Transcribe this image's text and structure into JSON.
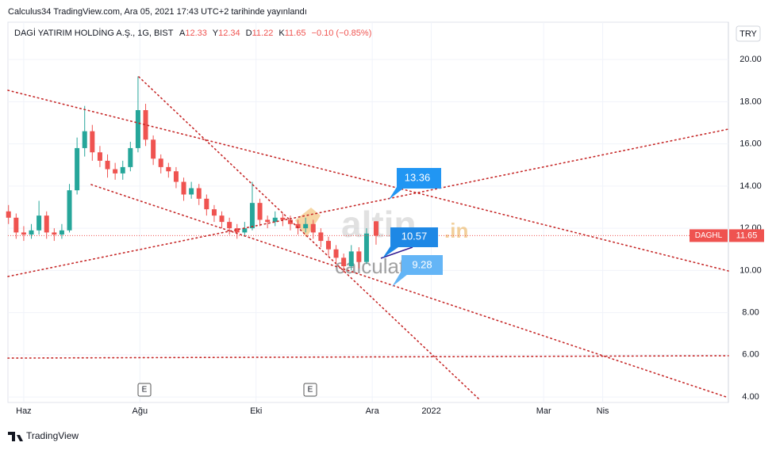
{
  "header": {
    "published": "Calculus34 TradingView.com, Ara 05, 2021 17:43 UTC+2 tarihinde yayınlandı",
    "footer": "TradingView",
    "currency_button": "TRY"
  },
  "chart_data": {
    "type": "candlestick",
    "title": "DAGİ YATIRIM HOLDİNG A.Ş., 1G, BIST",
    "ohlc_letters": [
      "A",
      "Y",
      "D",
      "K"
    ],
    "change_label": "−0.10 (−0.85%)",
    "symbol": "DAGHL",
    "up_color": "#26a69a",
    "down_color": "#ef5350",
    "x": [
      -8,
      -4,
      0,
      4,
      8,
      12,
      16,
      20,
      24,
      28,
      32,
      36,
      40,
      44,
      48,
      52,
      56,
      60,
      64,
      68,
      72,
      76,
      80,
      84,
      88,
      92,
      96,
      100,
      104,
      108,
      112,
      116,
      120,
      124,
      128,
      132,
      136,
      140,
      144,
      148,
      152,
      156,
      160,
      164,
      168,
      172,
      176,
      180,
      185
    ],
    "open": [
      12.8,
      12.5,
      11.8,
      11.7,
      11.9,
      12.6,
      11.8,
      11.7,
      11.9,
      13.8,
      15.8,
      16.6,
      15.6,
      15.2,
      14.8,
      14.6,
      14.9,
      15.8,
      17.6,
      16.2,
      15.3,
      14.9,
      14.7,
      14.2,
      13.6,
      13.9,
      13.4,
      12.9,
      12.6,
      12.3,
      12.0,
      11.8,
      12.0,
      13.2,
      12.4,
      12.3,
      12.5,
      12.4,
      12.2,
      12.0,
      12.2,
      11.8,
      11.4,
      11.0,
      10.6,
      10.2,
      10.9,
      10.4,
      12.33
    ],
    "high": [
      13.1,
      12.7,
      12.1,
      12.2,
      13.3,
      12.8,
      12.0,
      12.2,
      14.1,
      16.3,
      17.8,
      16.9,
      15.9,
      15.5,
      15.1,
      15.2,
      16.1,
      19.2,
      17.9,
      16.4,
      15.5,
      15.1,
      14.9,
      14.4,
      14.2,
      14.1,
      13.6,
      13.1,
      12.8,
      12.5,
      12.2,
      12.3,
      14.2,
      13.4,
      12.6,
      12.8,
      12.7,
      12.6,
      12.4,
      12.5,
      12.4,
      12.0,
      11.6,
      11.2,
      10.8,
      11.2,
      11.1,
      12.0,
      12.34
    ],
    "low": [
      12.2,
      11.5,
      11.4,
      11.5,
      11.7,
      11.5,
      11.4,
      11.5,
      11.8,
      13.6,
      15.4,
      15.2,
      14.9,
      14.4,
      14.3,
      14.3,
      14.7,
      15.6,
      15.9,
      15.0,
      14.6,
      14.4,
      13.9,
      13.3,
      13.4,
      13.1,
      12.6,
      12.3,
      12.0,
      11.7,
      11.5,
      11.6,
      11.9,
      12.1,
      12.0,
      12.1,
      12.1,
      11.9,
      11.7,
      11.8,
      11.5,
      11.1,
      10.7,
      10.3,
      9.9,
      10.0,
      10.1,
      10.3,
      11.22
    ],
    "close": [
      12.5,
      11.8,
      11.7,
      11.9,
      12.6,
      11.8,
      11.7,
      11.9,
      13.8,
      15.8,
      16.6,
      15.6,
      15.2,
      14.8,
      14.6,
      14.9,
      15.8,
      17.6,
      16.2,
      15.3,
      14.9,
      14.7,
      14.2,
      13.6,
      13.9,
      13.4,
      12.9,
      12.6,
      12.3,
      12.0,
      11.8,
      12.0,
      13.2,
      12.4,
      12.3,
      12.5,
      12.4,
      12.2,
      12.0,
      12.2,
      11.8,
      11.4,
      11.0,
      10.6,
      10.2,
      10.9,
      10.4,
      11.75,
      11.65
    ],
    "xlim": [
      -8.3,
      370
    ],
    "xticks": [
      {
        "value": 0,
        "label": "Haz"
      },
      {
        "value": 61,
        "label": "Ağu"
      },
      {
        "value": 122,
        "label": "Eki"
      },
      {
        "value": 183,
        "label": "Ara"
      },
      {
        "value": 214,
        "label": "2022"
      },
      {
        "value": 273,
        "label": "Mar"
      },
      {
        "value": 304,
        "label": "Nis"
      }
    ],
    "ylim": [
      3.74,
      21.77
    ],
    "yticks": [
      {
        "value": 4,
        "label": "4.00"
      },
      {
        "value": 6,
        "label": "6.00"
      },
      {
        "value": 8,
        "label": "8.00"
      },
      {
        "value": 10,
        "label": "10.00"
      },
      {
        "value": 12,
        "label": "12.00"
      },
      {
        "value": 14,
        "label": "14.00"
      },
      {
        "value": 16,
        "label": "16.00"
      },
      {
        "value": 18,
        "label": "18.00"
      },
      {
        "value": 20,
        "label": "20.00"
      }
    ],
    "grid": true,
    "annotations": [
      "13.36",
      "10.57",
      "9.28"
    ],
    "earnings_marker": "E",
    "watermark": [
      "altin",
      ".in",
      "calculator"
    ]
  }
}
